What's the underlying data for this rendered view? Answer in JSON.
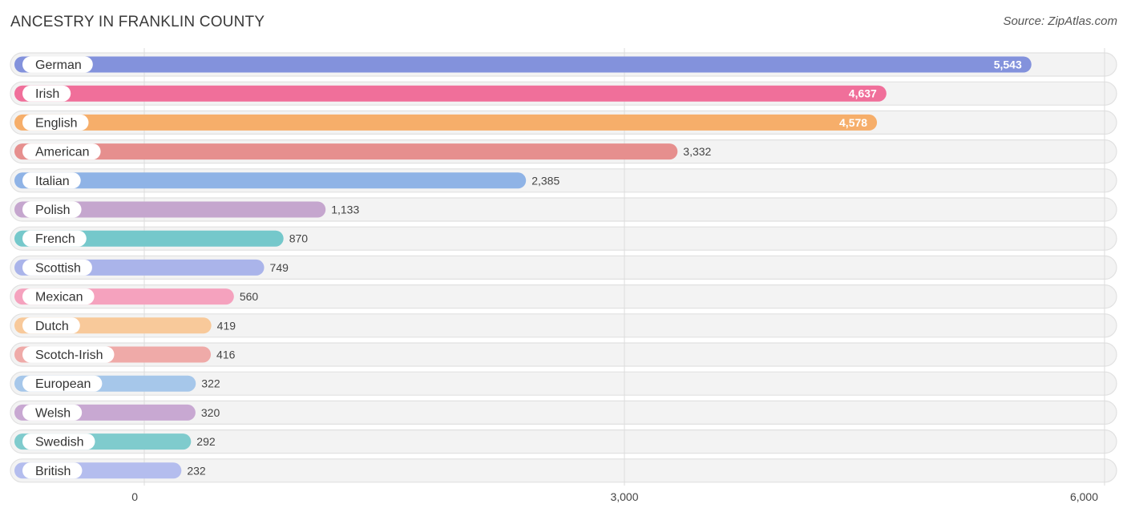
{
  "title": "ANCESTRY IN FRANKLIN COUNTY",
  "source": "Source: ZipAtlas.com",
  "chart_data": {
    "type": "bar",
    "orientation": "horizontal",
    "title": "ANCESTRY IN FRANKLIN COUNTY",
    "xlabel": "",
    "ylabel": "",
    "xlim": [
      0,
      6000
    ],
    "ticks": [
      0,
      3000,
      6000
    ],
    "tick_labels": [
      "0",
      "3,000",
      "6,000"
    ],
    "grid": true,
    "categories": [
      "German",
      "Irish",
      "English",
      "American",
      "Italian",
      "Polish",
      "French",
      "Scottish",
      "Mexican",
      "Dutch",
      "Scotch-Irish",
      "European",
      "Welsh",
      "Swedish",
      "British"
    ],
    "values": [
      5543,
      4637,
      4578,
      3332,
      2385,
      1133,
      870,
      749,
      560,
      419,
      416,
      322,
      320,
      292,
      232
    ],
    "value_labels": [
      "5,543",
      "4,637",
      "4,578",
      "3,332",
      "2,385",
      "1,133",
      "870",
      "749",
      "560",
      "419",
      "416",
      "322",
      "320",
      "292",
      "232"
    ],
    "colors": [
      "#8392dc",
      "#f06f9a",
      "#f6ae6a",
      "#e68f8e",
      "#8fb3e6",
      "#c5a6ce",
      "#75c8cb",
      "#aab4ea",
      "#f5a2be",
      "#f8c99a",
      "#efaaa8",
      "#a6c7ea",
      "#c8a8d2",
      "#7fcbcd",
      "#b4bdee"
    ]
  }
}
